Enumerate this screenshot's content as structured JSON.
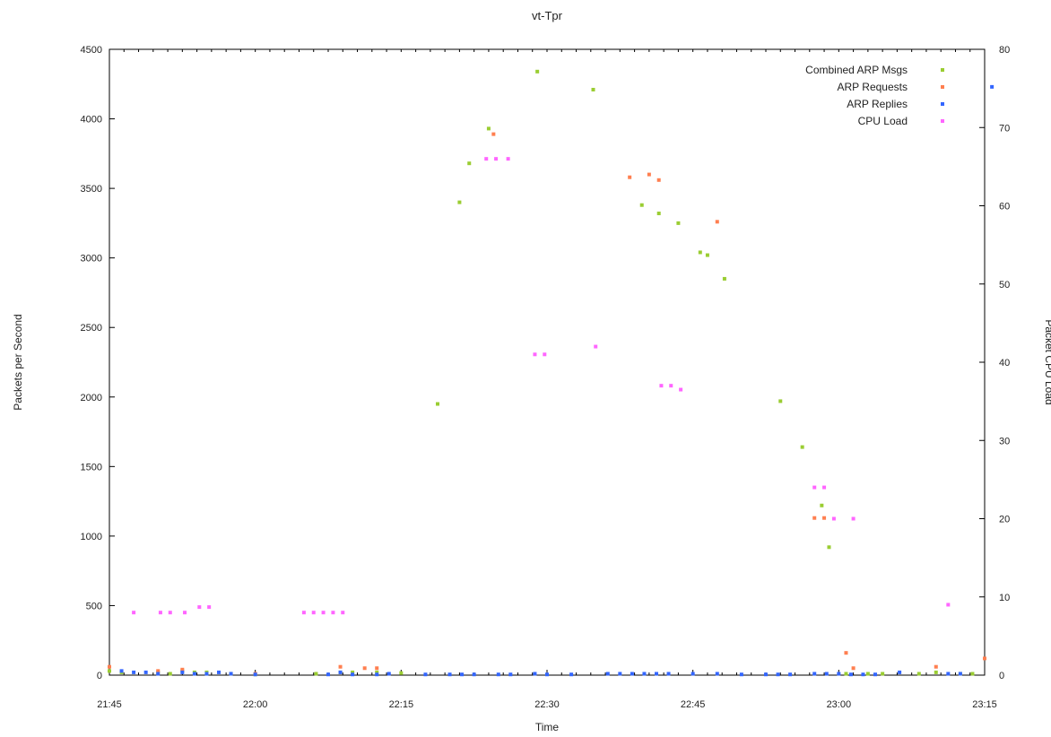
{
  "chart_data": {
    "type": "scatter",
    "title": "vt-Tpr",
    "xlabel": "Time",
    "ylabel_left": "Packets per Second",
    "ylabel_right": "Packet CPU Load",
    "x_ticks": [
      "21:45",
      "22:00",
      "22:15",
      "22:30",
      "22:45",
      "23:00",
      "23:15"
    ],
    "x_range": [
      0,
      360
    ],
    "y_left_range": [
      0,
      4500
    ],
    "y_left_ticks": [
      "0",
      "500",
      "1000",
      "1500",
      "2000",
      "2500",
      "3000",
      "3500",
      "4000",
      "4500"
    ],
    "y_right_range": [
      0,
      80
    ],
    "y_right_ticks": [
      "0",
      "10",
      "20",
      "30",
      "40",
      "50",
      "60",
      "70",
      "80"
    ],
    "grid": false,
    "legend_position": "top-right",
    "series": [
      {
        "name": "Combined ARP Msgs",
        "color": "#9acd32",
        "axis": "left",
        "points": [
          [
            0,
            30
          ],
          [
            5,
            20
          ],
          [
            20,
            20
          ],
          [
            25,
            10
          ],
          [
            30,
            30
          ],
          [
            35,
            20
          ],
          [
            40,
            20
          ],
          [
            50,
            10
          ],
          [
            60,
            5
          ],
          [
            85,
            10
          ],
          [
            95,
            20
          ],
          [
            100,
            20
          ],
          [
            110,
            20
          ],
          [
            120,
            15
          ],
          [
            135,
            1950
          ],
          [
            144,
            3400
          ],
          [
            148,
            3680
          ],
          [
            156,
            3930
          ],
          [
            176,
            4340
          ],
          [
            199,
            4210
          ],
          [
            219,
            3380
          ],
          [
            226,
            3320
          ],
          [
            234,
            3250
          ],
          [
            243,
            3040
          ],
          [
            246,
            3020
          ],
          [
            253,
            2850
          ],
          [
            276,
            1970
          ],
          [
            285,
            1640
          ],
          [
            293,
            1220
          ],
          [
            296,
            920
          ],
          [
            303,
            10
          ],
          [
            312,
            10
          ],
          [
            318,
            10
          ],
          [
            333,
            10
          ],
          [
            340,
            20
          ],
          [
            350,
            10
          ],
          [
            355,
            10
          ]
        ]
      },
      {
        "name": "ARP Requests",
        "color": "#ff7f50",
        "axis": "left",
        "points": [
          [
            0,
            60
          ],
          [
            20,
            30
          ],
          [
            30,
            40
          ],
          [
            60,
            10
          ],
          [
            95,
            60
          ],
          [
            105,
            50
          ],
          [
            110,
            50
          ],
          [
            158,
            3890
          ],
          [
            214,
            3580
          ],
          [
            222,
            3600
          ],
          [
            226,
            3560
          ],
          [
            250,
            3260
          ],
          [
            290,
            1130
          ],
          [
            294,
            1130
          ],
          [
            303,
            160
          ],
          [
            306,
            50
          ],
          [
            340,
            60
          ],
          [
            360,
            120
          ]
        ]
      },
      {
        "name": "ARP Replies",
        "color": "#3366ff",
        "axis": "left",
        "points": [
          [
            5,
            30
          ],
          [
            10,
            20
          ],
          [
            15,
            20
          ],
          [
            20,
            10
          ],
          [
            30,
            20
          ],
          [
            35,
            10
          ],
          [
            40,
            10
          ],
          [
            45,
            20
          ],
          [
            50,
            10
          ],
          [
            60,
            5
          ],
          [
            90,
            5
          ],
          [
            95,
            20
          ],
          [
            100,
            5
          ],
          [
            110,
            5
          ],
          [
            115,
            10
          ],
          [
            130,
            5
          ],
          [
            140,
            5
          ],
          [
            145,
            5
          ],
          [
            150,
            5
          ],
          [
            160,
            5
          ],
          [
            165,
            5
          ],
          [
            175,
            10
          ],
          [
            180,
            5
          ],
          [
            190,
            5
          ],
          [
            205,
            10
          ],
          [
            210,
            10
          ],
          [
            215,
            10
          ],
          [
            220,
            10
          ],
          [
            225,
            10
          ],
          [
            230,
            10
          ],
          [
            240,
            10
          ],
          [
            250,
            10
          ],
          [
            260,
            5
          ],
          [
            270,
            5
          ],
          [
            275,
            5
          ],
          [
            280,
            5
          ],
          [
            290,
            10
          ],
          [
            295,
            10
          ],
          [
            300,
            10
          ],
          [
            305,
            5
          ],
          [
            310,
            5
          ],
          [
            315,
            5
          ],
          [
            325,
            20
          ],
          [
            345,
            10
          ],
          [
            350,
            10
          ],
          [
            363,
            4230
          ]
        ]
      },
      {
        "name": "CPU Load",
        "color": "#ff66ff",
        "axis": "right",
        "points": [
          [
            10,
            8
          ],
          [
            21,
            8
          ],
          [
            25,
            8
          ],
          [
            31,
            8
          ],
          [
            37,
            8.7
          ],
          [
            41,
            8.7
          ],
          [
            80,
            8
          ],
          [
            84,
            8
          ],
          [
            88,
            8
          ],
          [
            92,
            8
          ],
          [
            96,
            8
          ],
          [
            155,
            66
          ],
          [
            159,
            66
          ],
          [
            164,
            66
          ],
          [
            175,
            41
          ],
          [
            179,
            41
          ],
          [
            200,
            42
          ],
          [
            227,
            37
          ],
          [
            231,
            37
          ],
          [
            235,
            36.5
          ],
          [
            290,
            24
          ],
          [
            294,
            24
          ],
          [
            298,
            20
          ],
          [
            306,
            20
          ],
          [
            345,
            9
          ]
        ]
      }
    ]
  }
}
